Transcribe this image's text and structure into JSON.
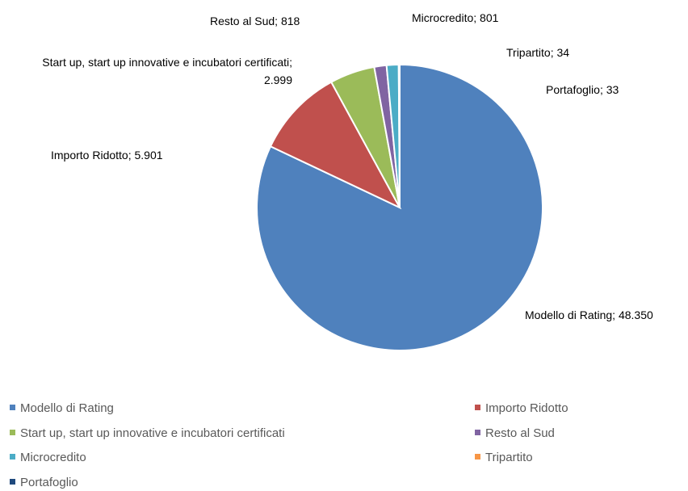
{
  "chart_data": {
    "type": "pie",
    "categories": [
      "Modello di Rating",
      "Importo Ridotto",
      "Start up, start up innovative e incubatori certificati",
      "Resto al Sud",
      "Microcredito",
      "Tripartito",
      "Portafoglio"
    ],
    "values": [
      48350,
      5901,
      2999,
      818,
      801,
      34,
      33
    ],
    "value_labels": [
      "48.350",
      "5.901",
      "2.999",
      "818",
      "801",
      "34",
      "33"
    ],
    "colors": [
      "#4f81bd",
      "#c0504d",
      "#9bbb59",
      "#8064a2",
      "#4bacc6",
      "#f79646",
      "#1f497d"
    ],
    "legend": "bottom"
  }
}
